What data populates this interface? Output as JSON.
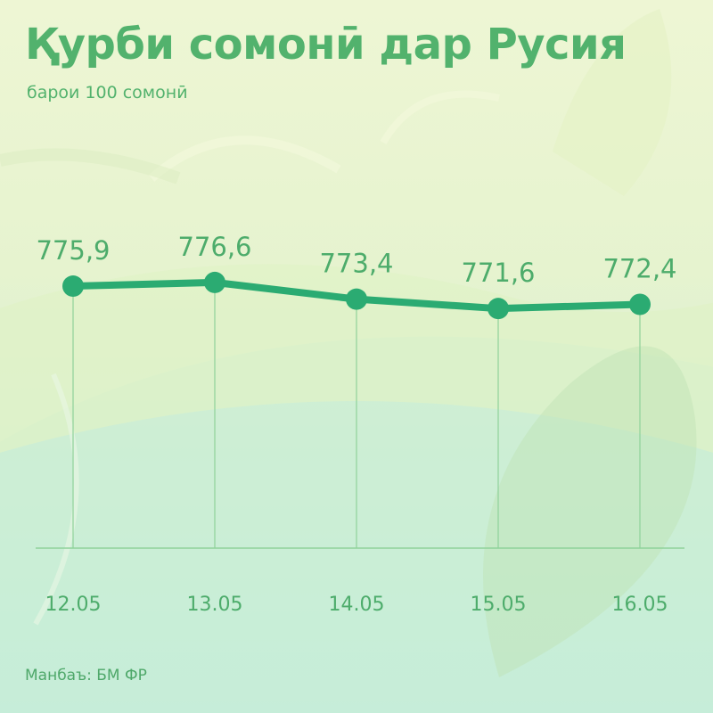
{
  "header": {
    "title": "Қурби сомонӣ дар Русия",
    "subtitle": "барои 100 сомонӣ"
  },
  "footer": {
    "source": "Манбаъ: БМ ФР"
  },
  "colors": {
    "accent": "#2bab72",
    "text": "#4dac6b",
    "guide": "#8fd29a"
  },
  "chart_data": {
    "type": "line",
    "title": "Қурби сомонӣ дар Русия",
    "subtitle": "барои 100 сомонӣ",
    "categories": [
      "12.05",
      "13.05",
      "14.05",
      "15.05",
      "16.05"
    ],
    "values": [
      775.9,
      776.6,
      773.4,
      771.6,
      772.4
    ],
    "value_labels": [
      "775,9",
      "776,6",
      "773,4",
      "771,6",
      "772,4"
    ],
    "ylim": [
      760,
      780
    ],
    "grid": false,
    "legend": "none"
  }
}
